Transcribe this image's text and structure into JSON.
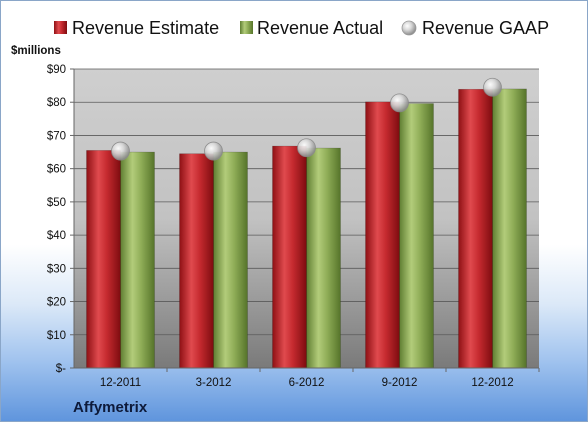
{
  "company": "Affymetrix",
  "chart_data": {
    "type": "bar",
    "ylabel": "$millions",
    "ylim": [
      0,
      90
    ],
    "ytick_step": 10,
    "ytick_labels": [
      "$-",
      "$10",
      "$20",
      "$30",
      "$40",
      "$50",
      "$60",
      "$70",
      "$80",
      "$90"
    ],
    "categories": [
      "12-2011",
      "3-2012",
      "6-2012",
      "9-2012",
      "12-2012"
    ],
    "series": [
      {
        "name": "Revenue Estimate",
        "type": "bar",
        "color": "#c0242a",
        "values": [
          65.5,
          64.5,
          66.8,
          80.1,
          83.9
        ]
      },
      {
        "name": "Revenue Actual",
        "type": "bar",
        "color": "#8caa55",
        "values": [
          65.0,
          65.0,
          66.2,
          79.6,
          84.0
        ]
      },
      {
        "name": "Revenue GAAP",
        "type": "marker",
        "color": "#c8c8c8",
        "values": [
          65.3,
          65.3,
          66.3,
          79.8,
          84.5
        ]
      }
    ],
    "legend_position": "top",
    "grid": true
  }
}
